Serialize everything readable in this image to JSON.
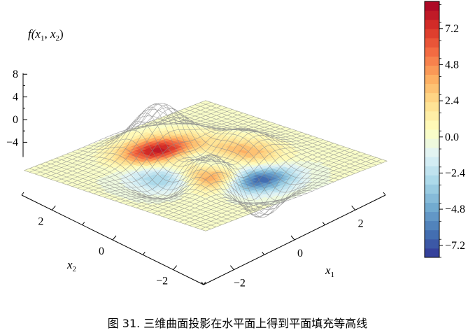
{
  "caption": "图 31. 三维曲面投影在水平面上得到平面填充等高线",
  "chart_data": {
    "type": "surface-3d",
    "surface_function": "f(x1,x2) = 3(1-x1)^2 exp(-x1^2-(x2+1)^2) - 10(x1/5-x1^3-x2^5) exp(-x1^2-x2^2) - (1/3) exp(-(x1+1)^2-x2^2)",
    "projection": "filled contours on plane f = 0",
    "x1_range": [
      -3,
      3
    ],
    "x2_range": [
      -3,
      3
    ],
    "zlim": [
      -7,
      9
    ],
    "z_label": {
      "prefix": "f(",
      "v1": "x",
      "s1": "1",
      "comma": ", ",
      "v2": "x",
      "s2": "2",
      "suffix": ")"
    },
    "x1_label": {
      "v": "x",
      "s": "1"
    },
    "x2_label": {
      "v": "x",
      "s": "2"
    },
    "z_ticks": [
      "8",
      "4",
      "0",
      "−4"
    ],
    "x1_ticks": [
      "−2",
      "0",
      "2"
    ],
    "x2_ticks": [
      "2",
      "0",
      "−2"
    ],
    "colorbar": {
      "colormap": "RdYlBu_r",
      "range": [
        -8,
        9
      ],
      "tick_labels": [
        "7.2",
        "4.8",
        "2.4",
        "0.0",
        "−2.4",
        "−4.8",
        "−7.2"
      ],
      "tick_values": [
        7.2,
        4.8,
        2.4,
        0.0,
        -2.4,
        -4.8,
        -7.2
      ]
    },
    "colors": [
      "#313695",
      "#4575b4",
      "#74add1",
      "#abd9e9",
      "#e0f3f8",
      "#ffffbf",
      "#fee090",
      "#fdae61",
      "#f46d43",
      "#d73027",
      "#a50026"
    ]
  }
}
